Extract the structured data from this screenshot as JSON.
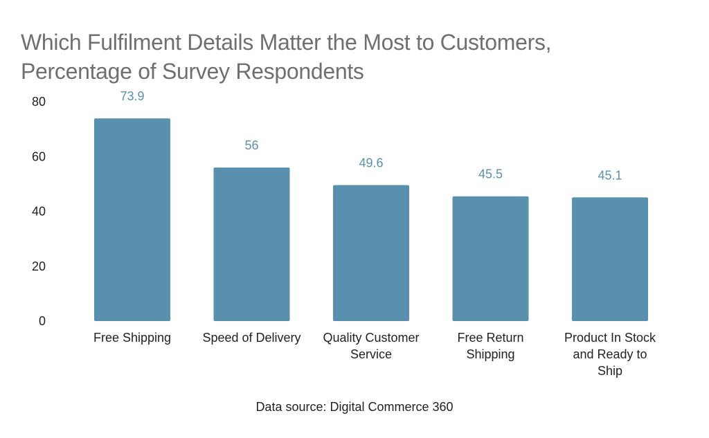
{
  "title_line1": "Which Fulfilment Details Matter the Most to Customers,",
  "title_line2": "Percentage of Survey Respondents",
  "source": "Data source: Digital Commerce 360",
  "colors": {
    "bar": "#5990ae",
    "value_label": "#5990ae",
    "title": "#6f6f6f"
  },
  "chart_data": {
    "type": "bar",
    "title": "Which Fulfilment Details Matter the Most to Customers, Percentage of Survey Respondents",
    "categories": [
      "Free Shipping",
      "Speed of Delivery",
      "Quality Customer Service",
      "Free Return Shipping",
      "Product In Stock and Ready to Ship"
    ],
    "category_lines": [
      [
        "Free Shipping"
      ],
      [
        "Speed of Delivery"
      ],
      [
        "Quality Customer",
        "Service"
      ],
      [
        "Free Return",
        "Shipping"
      ],
      [
        "Product In Stock",
        "and Ready to",
        "Ship"
      ]
    ],
    "values": [
      73.9,
      56,
      49.6,
      45.5,
      45.1
    ],
    "value_labels": [
      "73.9",
      "56",
      "49.6",
      "45.5",
      "45.1"
    ],
    "ylim": [
      0,
      80
    ],
    "yticks": [
      0,
      20,
      40,
      60,
      80
    ],
    "xlabel": "",
    "ylabel": "",
    "grid": false
  }
}
